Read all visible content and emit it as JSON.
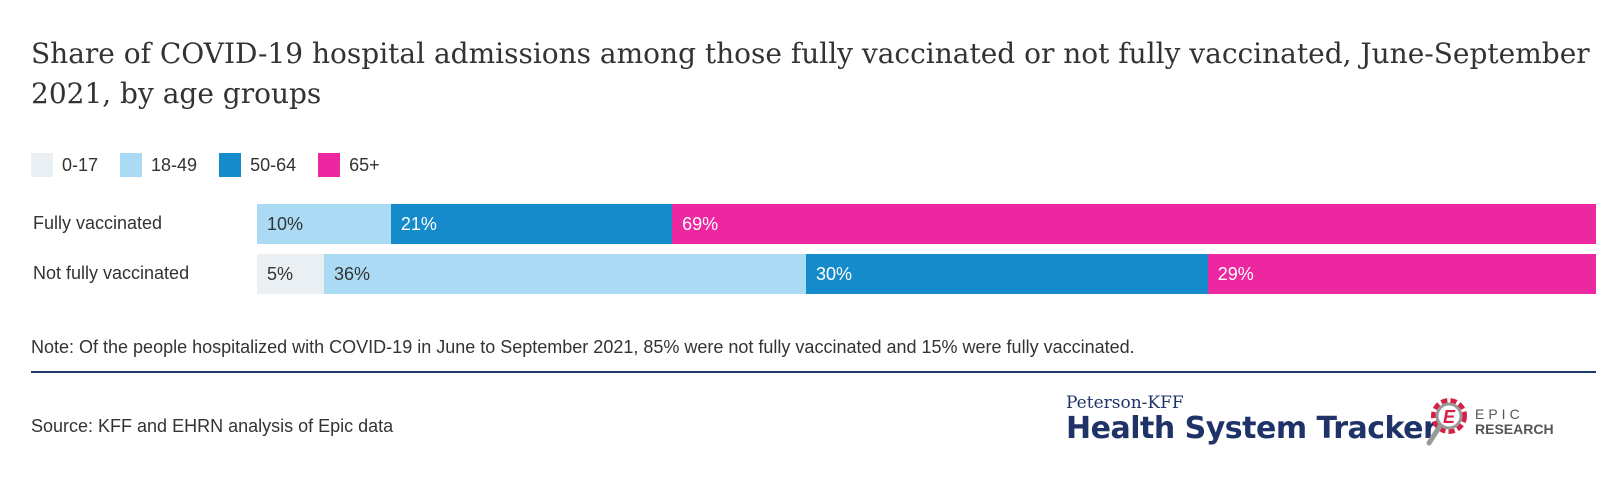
{
  "title": "Share of COVID-19 hospital admissions among those fully vaccinated or not fully vaccinated, June-September 2021, by age groups",
  "chart_data": {
    "type": "bar",
    "orientation": "horizontal",
    "stacked": true,
    "title": "Share of COVID-19 hospital admissions among those fully vaccinated or not fully vaccinated, June-September 2021, by age groups",
    "categories": [
      "Fully vaccinated",
      "Not fully vaccinated"
    ],
    "series": [
      {
        "name": "0-17",
        "color": "#e9eff2",
        "values": [
          0,
          5
        ],
        "labels": [
          "",
          "5%"
        ]
      },
      {
        "name": "18-49",
        "color": "#abdbf4",
        "values": [
          10,
          36
        ],
        "labels": [
          "10%",
          "36%"
        ]
      },
      {
        "name": "50-64",
        "color": "#168bcb",
        "values": [
          21,
          30
        ],
        "labels": [
          "21%",
          "30%"
        ]
      },
      {
        "name": "65+",
        "color": "#ec27a0",
        "values": [
          69,
          29
        ],
        "labels": [
          "69%",
          "29%"
        ]
      }
    ],
    "xlim": [
      0,
      100
    ],
    "legend": "top-left"
  },
  "note": "Note: Of the people hospitalized with COVID-19 in June to September 2021, 85% were not fully vaccinated and 15% were fully vaccinated.",
  "source": "Source: KFF and EHRN analysis of Epic data",
  "logo": {
    "small": "Peterson-KFF",
    "big": "Health System Tracker",
    "epic_top": "EPIC",
    "epic_bottom": "RESEARCH"
  }
}
